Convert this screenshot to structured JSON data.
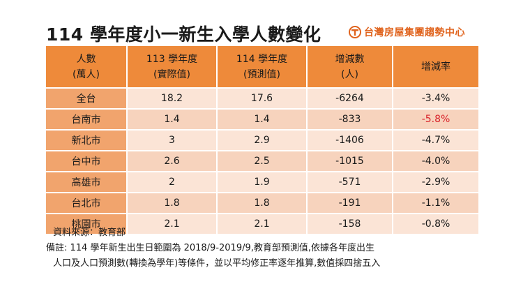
{
  "title": "114 學年度小一新生入學人數變化",
  "brand": {
    "name": "台灣房屋集團趨勢中心",
    "icon": "house-logo-icon",
    "color": "#e0641e"
  },
  "colors": {
    "header": "#ee8a3a",
    "region_cell": "#f1a46d",
    "row_light": "#fbe4d6",
    "row_dark": "#f7d3bd",
    "highlight": "#d9222a"
  },
  "table": {
    "headers": [
      {
        "line1": "人數",
        "line2": "(萬人)"
      },
      {
        "line1": "113 學年度",
        "line2": "(實際值)"
      },
      {
        "line1": "114 學年度",
        "line2": "(預測值)"
      },
      {
        "line1": "增減數",
        "line2": "(人)"
      },
      {
        "line1": "增減率",
        "line2": ""
      }
    ],
    "rows": [
      {
        "region": "全台",
        "y113": "18.2",
        "y114": "17.6",
        "change": "-6264",
        "rate": "-3.4%"
      },
      {
        "region": "台南市",
        "y113": "1.4",
        "y114": "1.4",
        "change": "-833",
        "rate": "-5.8%"
      },
      {
        "region": "新北市",
        "y113": "3",
        "y114": "2.9",
        "change": "-1406",
        "rate": "-4.7%"
      },
      {
        "region": "台中市",
        "y113": "2.6",
        "y114": "2.5",
        "change": "-1015",
        "rate": "-4.0%"
      },
      {
        "region": "高雄市",
        "y113": "2",
        "y114": "1.9",
        "change": "-571",
        "rate": "-2.9%"
      },
      {
        "region": "台北市",
        "y113": "1.8",
        "y114": "1.8",
        "change": "-191",
        "rate": "-1.1%"
      },
      {
        "region": "桃園市",
        "y113": "2.1",
        "y114": "2.1",
        "change": "-158",
        "rate": "-0.8%"
      }
    ],
    "highlight_row": 1
  },
  "notes": {
    "source": "資料來源：教育部",
    "remark_line1": "備註: 114 學年新生出生日範圍為 2018/9-2019/9,教育部預測值,依據各年度出生",
    "remark_line2": "人口及人口預測數(轉換為學年)等條件，並以平均修正率逐年推算,數值採四捨五入"
  }
}
